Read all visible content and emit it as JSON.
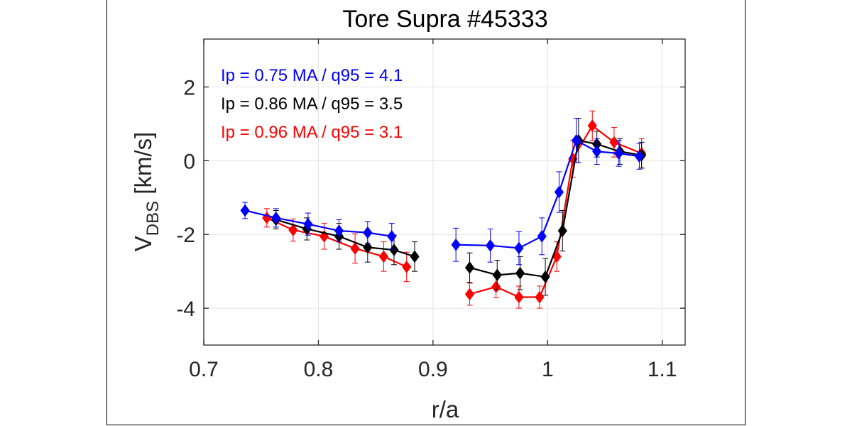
{
  "chart_data": {
    "type": "line",
    "title": "Tore Supra #45333",
    "xlabel": "r/a",
    "ylabel_main": "V",
    "ylabel_sub": "DBS",
    "ylabel_unit": " [km/s]",
    "xlim": [
      0.7,
      1.12
    ],
    "ylim": [
      -5,
      3.3
    ],
    "xticks": [
      0.7,
      0.8,
      0.9,
      1,
      1.1
    ],
    "xtick_labels": [
      "0.7",
      "0.8",
      "0.9",
      "1",
      "1.1"
    ],
    "yticks": [
      -4,
      -2,
      0,
      2
    ],
    "ytick_labels": [
      "-4",
      "-2",
      "0",
      "2"
    ],
    "grid": true,
    "legend_position": "top-left",
    "series": [
      {
        "name": "Ip = 0.75 MA / q95 = 4.1",
        "color": "#0000ff",
        "segments": [
          {
            "x": [
              0.736,
              0.763,
              0.791,
              0.818,
              0.843,
              0.864
            ],
            "y": [
              -1.35,
              -1.55,
              -1.72,
              -1.9,
              -1.95,
              -2.05
            ],
            "err": [
              0.22,
              0.25,
              0.3,
              0.3,
              0.3,
              0.35
            ]
          },
          {
            "x": [
              0.92,
              0.95,
              0.975,
              0.995,
              1.01,
              1.025,
              1.043,
              1.062,
              1.08
            ],
            "y": [
              -2.28,
              -2.3,
              -2.37,
              -2.05,
              -0.85,
              0.55,
              0.25,
              0.2,
              0.12
            ],
            "err": [
              0.45,
              0.45,
              0.45,
              0.5,
              0.55,
              0.6,
              0.35,
              0.35,
              0.35
            ]
          }
        ]
      },
      {
        "name": "Ip = 0.86 MA / q95 = 3.5",
        "color": "#000000",
        "segments": [
          {
            "x": [
              0.763,
              0.79,
              0.818,
              0.843,
              0.866,
              0.884
            ],
            "y": [
              -1.6,
              -1.85,
              -2.05,
              -2.35,
              -2.42,
              -2.6
            ],
            "err": [
              0.25,
              0.3,
              0.35,
              0.4,
              0.4,
              0.4
            ]
          },
          {
            "x": [
              0.932,
              0.956,
              0.976,
              0.998,
              1.013,
              1.027,
              1.043,
              1.063,
              1.082
            ],
            "y": [
              -2.9,
              -3.1,
              -3.05,
              -3.15,
              -1.9,
              0.55,
              0.45,
              0.25,
              0.15
            ],
            "err": [
              0.4,
              0.4,
              0.45,
              0.5,
              0.55,
              0.6,
              0.35,
              0.35,
              0.35
            ]
          }
        ]
      },
      {
        "name": "Ip = 0.96 MA / q95 = 3.1",
        "color": "#ff0000",
        "segments": [
          {
            "x": [
              0.755,
              0.778,
              0.805,
              0.832,
              0.857,
              0.877
            ],
            "y": [
              -1.55,
              -1.88,
              -2.05,
              -2.38,
              -2.6,
              -2.88
            ],
            "err": [
              0.25,
              0.3,
              0.35,
              0.4,
              0.4,
              0.4
            ]
          },
          {
            "x": [
              0.932,
              0.955,
              0.975,
              0.993,
              1.008,
              1.022,
              1.039,
              1.058,
              1.082
            ],
            "y": [
              -3.62,
              -3.42,
              -3.7,
              -3.7,
              -2.6,
              0.05,
              0.95,
              0.5,
              0.2
            ],
            "err": [
              0.3,
              0.3,
              0.3,
              0.3,
              0.4,
              0.5,
              0.4,
              0.4,
              0.4
            ]
          }
        ]
      }
    ]
  }
}
